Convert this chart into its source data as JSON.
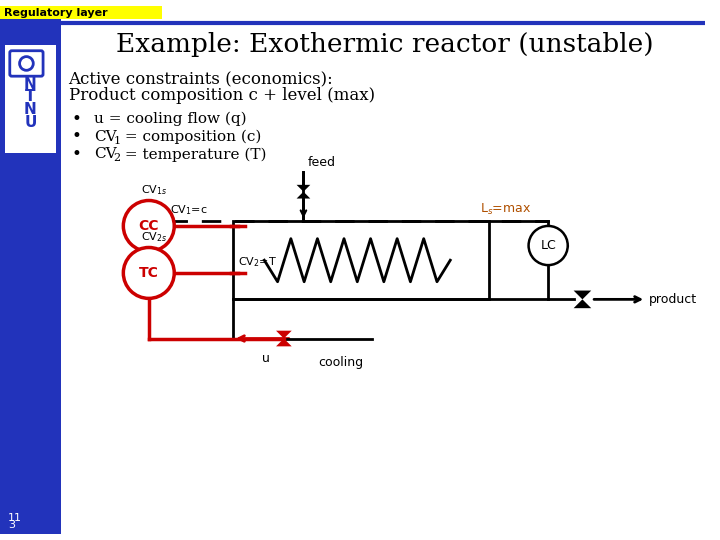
{
  "title": "Example: Exothermic reactor (unstable)",
  "header_label": "Regulatory layer",
  "header_bg": "#FFFF00",
  "sidebar_color": "#2233bb",
  "slide_bg": "#ffffff",
  "constraints_line1": "Active constraints (economics):",
  "constraints_line2": "Product composition c + level (max)",
  "bullet1": "u = cooling flow (q)",
  "bullet2_pre": "CV",
  "bullet2_sub": "1",
  "bullet2_post": " = composition (c)",
  "bullet3_pre": "CV",
  "bullet3_sub": "2",
  "bullet3_post": " = temperature (T)",
  "footer": "11\n3",
  "red_color": "#cc0000",
  "black_color": "#000000",
  "orange_color": "#b05000"
}
